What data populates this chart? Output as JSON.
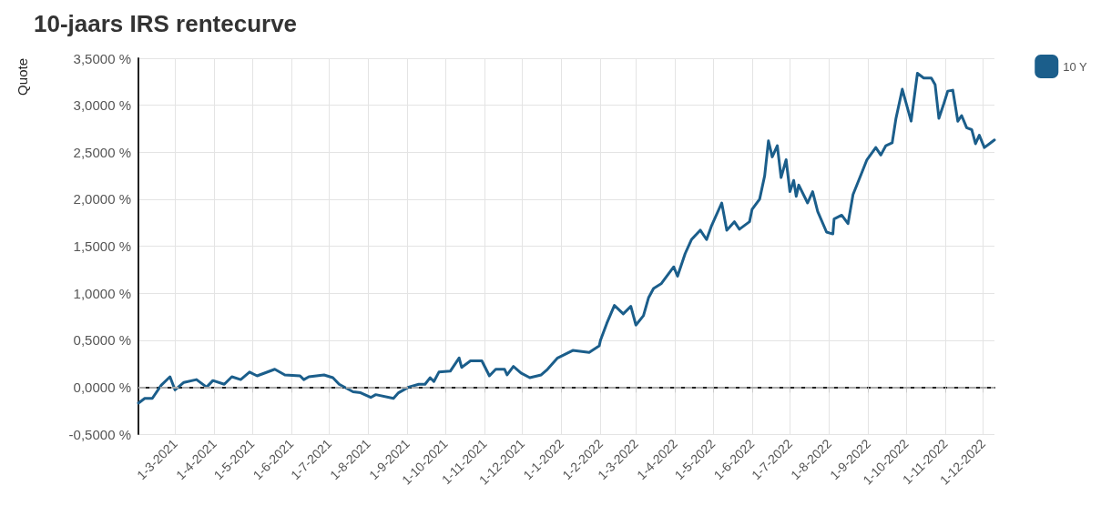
{
  "chart_data": {
    "type": "line",
    "title": "10-jaars IRS rentecurve",
    "ylabel": "Quote",
    "x": [
      "2021-01-31",
      "2021-02-05",
      "2021-02-11",
      "2021-02-18",
      "2021-02-25",
      "2021-03-01",
      "2021-03-08",
      "2021-03-18",
      "2021-03-26",
      "2021-03-31",
      "2021-04-09",
      "2021-04-15",
      "2021-04-22",
      "2021-04-29",
      "2021-05-05",
      "2021-05-19",
      "2021-05-27",
      "2021-06-08",
      "2021-06-11",
      "2021-06-15",
      "2021-06-27",
      "2021-07-04",
      "2021-07-09",
      "2021-07-20",
      "2021-07-26",
      "2021-08-03",
      "2021-08-07",
      "2021-08-21",
      "2021-08-25",
      "2021-09-02",
      "2021-09-10",
      "2021-09-15",
      "2021-09-19",
      "2021-09-22",
      "2021-09-26",
      "2021-10-05",
      "2021-10-12",
      "2021-10-14",
      "2021-10-21",
      "2021-10-30",
      "2021-11-05",
      "2021-11-10",
      "2021-11-17",
      "2021-11-19",
      "2021-11-24",
      "2021-11-30",
      "2021-12-07",
      "2021-12-16",
      "2021-12-21",
      "2021-12-29",
      "2022-01-10",
      "2022-01-23",
      "2022-01-31",
      "2022-02-01",
      "2022-02-06",
      "2022-02-12",
      "2022-02-19",
      "2022-02-25",
      "2022-03-01",
      "2022-03-07",
      "2022-03-11",
      "2022-03-15",
      "2022-03-21",
      "2022-03-31",
      "2022-04-03",
      "2022-04-09",
      "2022-04-14",
      "2022-04-21",
      "2022-04-26",
      "2022-04-30",
      "2022-05-08",
      "2022-05-12",
      "2022-05-18",
      "2022-05-22",
      "2022-05-30",
      "2022-06-01",
      "2022-06-07",
      "2022-06-11",
      "2022-06-14",
      "2022-06-17",
      "2022-06-21",
      "2022-06-24",
      "2022-06-28",
      "2022-07-01",
      "2022-07-04",
      "2022-07-06",
      "2022-07-08",
      "2022-07-15",
      "2022-07-19",
      "2022-07-23",
      "2022-07-30",
      "2022-08-04",
      "2022-08-05",
      "2022-08-11",
      "2022-08-16",
      "2022-08-20",
      "2022-08-26",
      "2022-08-31",
      "2022-09-07",
      "2022-09-11",
      "2022-09-15",
      "2022-09-20",
      "2022-09-23",
      "2022-09-28",
      "2022-10-05",
      "2022-10-10",
      "2022-10-15",
      "2022-10-21",
      "2022-10-24",
      "2022-10-27",
      "2022-10-31",
      "2022-11-03",
      "2022-11-07",
      "2022-11-11",
      "2022-11-14",
      "2022-11-18",
      "2022-11-22",
      "2022-11-25",
      "2022-11-28",
      "2022-12-02",
      "2022-12-06",
      "2022-12-10"
    ],
    "series": [
      {
        "name": "10 Y",
        "color": "#1b5e8b",
        "values": [
          -0.17,
          -0.12,
          -0.12,
          0.02,
          0.11,
          -0.03,
          0.05,
          0.08,
          0.0,
          0.07,
          0.03,
          0.11,
          0.08,
          0.16,
          0.12,
          0.19,
          0.13,
          0.12,
          0.08,
          0.11,
          0.13,
          0.1,
          0.03,
          -0.05,
          -0.06,
          -0.11,
          -0.08,
          -0.12,
          -0.06,
          0.0,
          0.03,
          0.03,
          0.1,
          0.06,
          0.16,
          0.17,
          0.31,
          0.21,
          0.28,
          0.28,
          0.12,
          0.19,
          0.19,
          0.13,
          0.22,
          0.15,
          0.1,
          0.13,
          0.19,
          0.31,
          0.39,
          0.37,
          0.44,
          0.5,
          0.68,
          0.87,
          0.78,
          0.86,
          0.66,
          0.76,
          0.95,
          1.05,
          1.1,
          1.28,
          1.18,
          1.42,
          1.57,
          1.67,
          1.57,
          1.72,
          1.96,
          1.67,
          1.76,
          1.68,
          1.76,
          1.89,
          2.0,
          2.25,
          2.62,
          2.45,
          2.57,
          2.23,
          2.42,
          2.08,
          2.2,
          2.03,
          2.15,
          1.96,
          2.08,
          1.87,
          1.65,
          1.63,
          1.79,
          1.83,
          1.74,
          2.05,
          2.25,
          2.42,
          2.55,
          2.47,
          2.57,
          2.6,
          2.86,
          3.17,
          2.83,
          3.34,
          3.29,
          3.29,
          3.22,
          2.86,
          3.02,
          3.15,
          3.16,
          2.83,
          2.89,
          2.76,
          2.74,
          2.59,
          2.68,
          2.55,
          2.59,
          2.63
        ]
      }
    ],
    "xlim": [
      "2021-01-31",
      "2022-12-10"
    ],
    "xticks": [
      {
        "value": "2021-03-01",
        "label": "1-3-2021"
      },
      {
        "value": "2021-04-01",
        "label": "1-4-2021"
      },
      {
        "value": "2021-05-01",
        "label": "1-5-2021"
      },
      {
        "value": "2021-06-01",
        "label": "1-6-2021"
      },
      {
        "value": "2021-07-01",
        "label": "1-7-2021"
      },
      {
        "value": "2021-08-01",
        "label": "1-8-2021"
      },
      {
        "value": "2021-09-01",
        "label": "1-9-2021"
      },
      {
        "value": "2021-10-01",
        "label": "1-10-2021"
      },
      {
        "value": "2021-11-01",
        "label": "1-11-2021"
      },
      {
        "value": "2021-12-01",
        "label": "1-12-2021"
      },
      {
        "value": "2022-01-01",
        "label": "1-1-2022"
      },
      {
        "value": "2022-02-01",
        "label": "1-2-2022"
      },
      {
        "value": "2022-03-01",
        "label": "1-3-2022"
      },
      {
        "value": "2022-04-01",
        "label": "1-4-2022"
      },
      {
        "value": "2022-05-01",
        "label": "1-5-2022"
      },
      {
        "value": "2022-06-01",
        "label": "1-6-2022"
      },
      {
        "value": "2022-07-01",
        "label": "1-7-2022"
      },
      {
        "value": "2022-08-01",
        "label": "1-8-2022"
      },
      {
        "value": "2022-09-01",
        "label": "1-9-2022"
      },
      {
        "value": "2022-10-01",
        "label": "1-10-2022"
      },
      {
        "value": "2022-11-01",
        "label": "1-11-2022"
      },
      {
        "value": "2022-12-01",
        "label": "1-12-2022"
      }
    ],
    "ylim": [
      -0.5,
      3.5
    ],
    "yticks": [
      {
        "value": -0.5,
        "label": "-0,5000 %"
      },
      {
        "value": 0,
        "label": "0,0000 %"
      },
      {
        "value": 0.5,
        "label": "0,5000 %"
      },
      {
        "value": 1,
        "label": "1,0000 %"
      },
      {
        "value": 1.5,
        "label": "1,5000 %"
      },
      {
        "value": 2,
        "label": "2,0000 %"
      },
      {
        "value": 2.5,
        "label": "2,5000 %"
      },
      {
        "value": 3,
        "label": "3,0000 %"
      },
      {
        "value": 3.5,
        "label": "3,5000 %"
      }
    ],
    "ref_lines": [
      {
        "axis": "y",
        "value": 0,
        "color": "#aaaaaa",
        "line_style": "dashed"
      }
    ],
    "grid": true,
    "legend": "top right",
    "marker": "none",
    "line_style": "solid"
  }
}
